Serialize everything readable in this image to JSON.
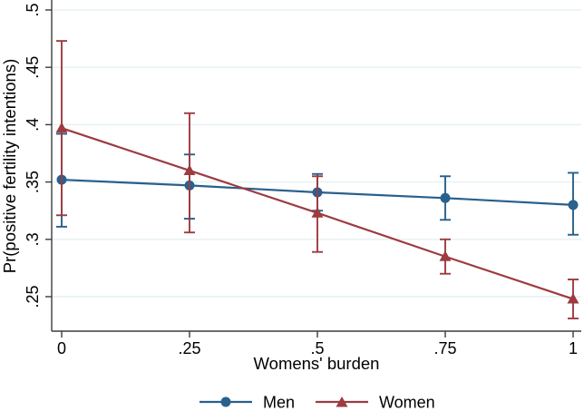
{
  "chart_data": {
    "type": "line",
    "title": "",
    "xlabel": "Womens' burden",
    "ylabel": "Pr(positive fertility intentions)",
    "x": [
      0,
      0.25,
      0.5,
      0.75,
      1
    ],
    "x_tick_labels": [
      "0",
      ".25",
      ".5",
      ".75",
      "1"
    ],
    "y_ticks": [
      0.25,
      0.3,
      0.35,
      0.4,
      0.45,
      0.5
    ],
    "y_tick_labels": [
      ".25",
      ".3",
      ".35",
      ".4",
      ".45",
      ".5"
    ],
    "xlim": [
      0,
      1
    ],
    "ylim": [
      0.22,
      0.509
    ],
    "grid": "horizontal",
    "legend_position": "bottom",
    "series": [
      {
        "name": "Men",
        "marker": "circle",
        "color": "#29608c",
        "values": [
          0.352,
          0.347,
          0.341,
          0.336,
          0.33
        ],
        "ci_low": [
          0.311,
          0.318,
          0.325,
          0.317,
          0.304
        ],
        "ci_high": [
          0.392,
          0.374,
          0.357,
          0.355,
          0.358
        ]
      },
      {
        "name": "Women",
        "marker": "triangle",
        "color": "#9d3b40",
        "values": [
          0.397,
          0.36,
          0.323,
          0.285,
          0.248
        ],
        "ci_low": [
          0.321,
          0.306,
          0.289,
          0.27,
          0.231
        ],
        "ci_high": [
          0.473,
          0.41,
          0.355,
          0.3,
          0.265
        ]
      }
    ]
  },
  "colors": {
    "background": "#ffffff",
    "gridline": "#e6f1f1",
    "axis": "#3c3c3c",
    "text": "#000000"
  }
}
